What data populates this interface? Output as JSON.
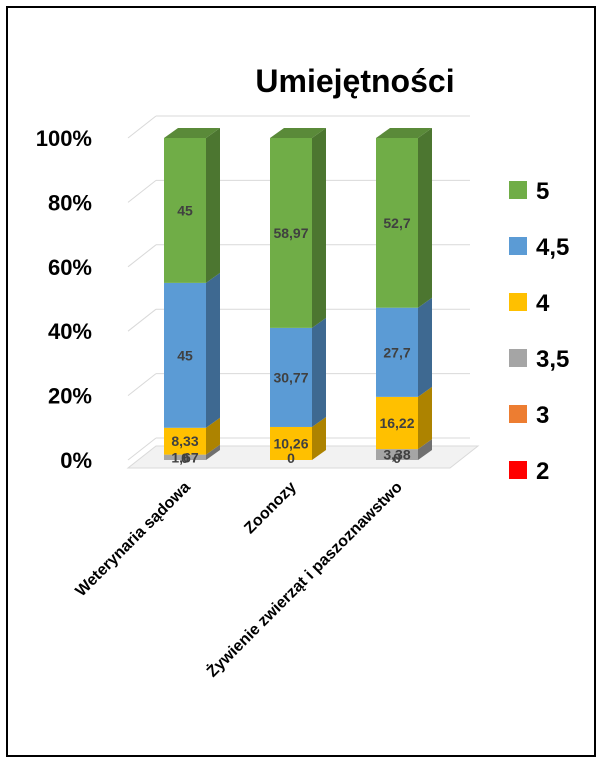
{
  "chart_data": {
    "type": "bar",
    "stacked": "percent",
    "title": "Umiejętności",
    "categories": [
      "Weterynaria sądowa",
      "Zoonozy",
      "Żywienie zwierząt i paszoznawstwo"
    ],
    "series": [
      {
        "name": "2",
        "color": "#ff0000",
        "values": [
          0,
          0,
          0
        ],
        "labels": [
          "",
          "",
          ""
        ]
      },
      {
        "name": "3",
        "color": "#ed7d31",
        "values": [
          0,
          0,
          0
        ],
        "labels": [
          "0",
          "0",
          "0"
        ]
      },
      {
        "name": "3,5",
        "color": "#a5a5a5",
        "values": [
          1.67,
          0,
          3.38
        ],
        "labels": [
          "1,67",
          "",
          "3,38"
        ]
      },
      {
        "name": "4",
        "color": "#ffc000",
        "values": [
          8.33,
          10.26,
          16.22
        ],
        "labels": [
          "8,33",
          "10,26",
          "16,22"
        ]
      },
      {
        "name": "4,5",
        "color": "#5b9bd5",
        "values": [
          45,
          30.77,
          27.7
        ],
        "labels": [
          "45",
          "30,77",
          "27,7"
        ]
      },
      {
        "name": "5",
        "color": "#70ad47",
        "values": [
          45,
          58.97,
          52.7
        ],
        "labels": [
          "45",
          "58,97",
          "52,7"
        ]
      }
    ],
    "ylim": [
      0,
      100
    ],
    "yticks": [
      "0%",
      "20%",
      "40%",
      "60%",
      "80%",
      "100%"
    ],
    "legend": {
      "position": "right",
      "order": [
        "5",
        "4,5",
        "4",
        "3,5",
        "3",
        "2"
      ]
    },
    "grid": true
  }
}
